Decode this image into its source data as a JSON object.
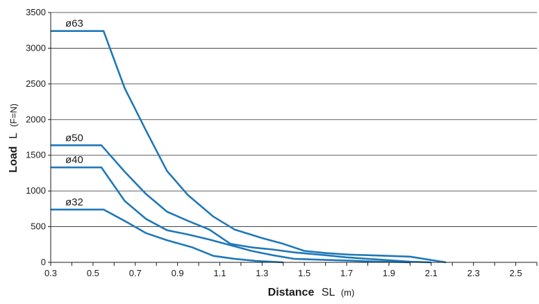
{
  "chart_data": {
    "type": "line",
    "xlabel": {
      "bold": "Distance",
      "symbol": "SL",
      "unit": "(m)"
    },
    "ylabel": {
      "bold": "Load",
      "symbol": "L",
      "unit": "(F=N)"
    },
    "xlim": [
      0.3,
      2.6
    ],
    "ylim": [
      0,
      3500
    ],
    "x_ticks": [
      "0.3",
      "0.5",
      "0.7",
      "0.9",
      "1.1",
      "1.3",
      "1.5",
      "1.7",
      "1.9",
      "2.1",
      "2.3",
      "2.5"
    ],
    "y_ticks": [
      "0",
      "500",
      "1000",
      "1500",
      "2000",
      "2500",
      "3000",
      "3500"
    ],
    "grid": {
      "horizontal": true,
      "vertical": false
    },
    "line_color": "#1f78b8",
    "series": [
      {
        "name": "ø63",
        "points": [
          [
            0.3,
            3240
          ],
          [
            0.55,
            3240
          ],
          [
            0.65,
            2440
          ],
          [
            0.75,
            1850
          ],
          [
            0.85,
            1280
          ],
          [
            0.95,
            940
          ],
          [
            1.07,
            640
          ],
          [
            1.17,
            460
          ],
          [
            1.3,
            340
          ],
          [
            1.4,
            260
          ],
          [
            1.5,
            160
          ],
          [
            1.6,
            130
          ],
          [
            1.7,
            110
          ],
          [
            1.8,
            100
          ],
          [
            1.9,
            90
          ],
          [
            2.0,
            80
          ],
          [
            2.17,
            0
          ]
        ]
      },
      {
        "name": "ø50",
        "points": [
          [
            0.3,
            1640
          ],
          [
            0.54,
            1640
          ],
          [
            0.65,
            1270
          ],
          [
            0.75,
            960
          ],
          [
            0.85,
            710
          ],
          [
            0.95,
            580
          ],
          [
            1.05,
            460
          ],
          [
            1.15,
            260
          ],
          [
            1.25,
            210
          ],
          [
            1.35,
            180
          ],
          [
            1.45,
            140
          ],
          [
            1.6,
            100
          ],
          [
            1.7,
            70
          ],
          [
            1.8,
            50
          ],
          [
            1.9,
            30
          ],
          [
            2.0,
            10
          ],
          [
            2.1,
            0
          ]
        ]
      },
      {
        "name": "ø40",
        "points": [
          [
            0.3,
            1330
          ],
          [
            0.54,
            1330
          ],
          [
            0.65,
            860
          ],
          [
            0.75,
            610
          ],
          [
            0.85,
            450
          ],
          [
            0.95,
            390
          ],
          [
            1.05,
            320
          ],
          [
            1.15,
            240
          ],
          [
            1.25,
            160
          ],
          [
            1.35,
            100
          ],
          [
            1.45,
            50
          ],
          [
            1.55,
            40
          ],
          [
            1.65,
            30
          ],
          [
            1.75,
            20
          ],
          [
            1.85,
            10
          ],
          [
            1.95,
            5
          ],
          [
            2.0,
            0
          ]
        ]
      },
      {
        "name": "ø32",
        "points": [
          [
            0.3,
            740
          ],
          [
            0.55,
            740
          ],
          [
            0.65,
            580
          ],
          [
            0.75,
            410
          ],
          [
            0.85,
            310
          ],
          [
            0.97,
            210
          ],
          [
            1.07,
            90
          ],
          [
            1.17,
            50
          ],
          [
            1.27,
            20
          ],
          [
            1.37,
            5
          ],
          [
            1.4,
            0
          ]
        ]
      }
    ]
  }
}
